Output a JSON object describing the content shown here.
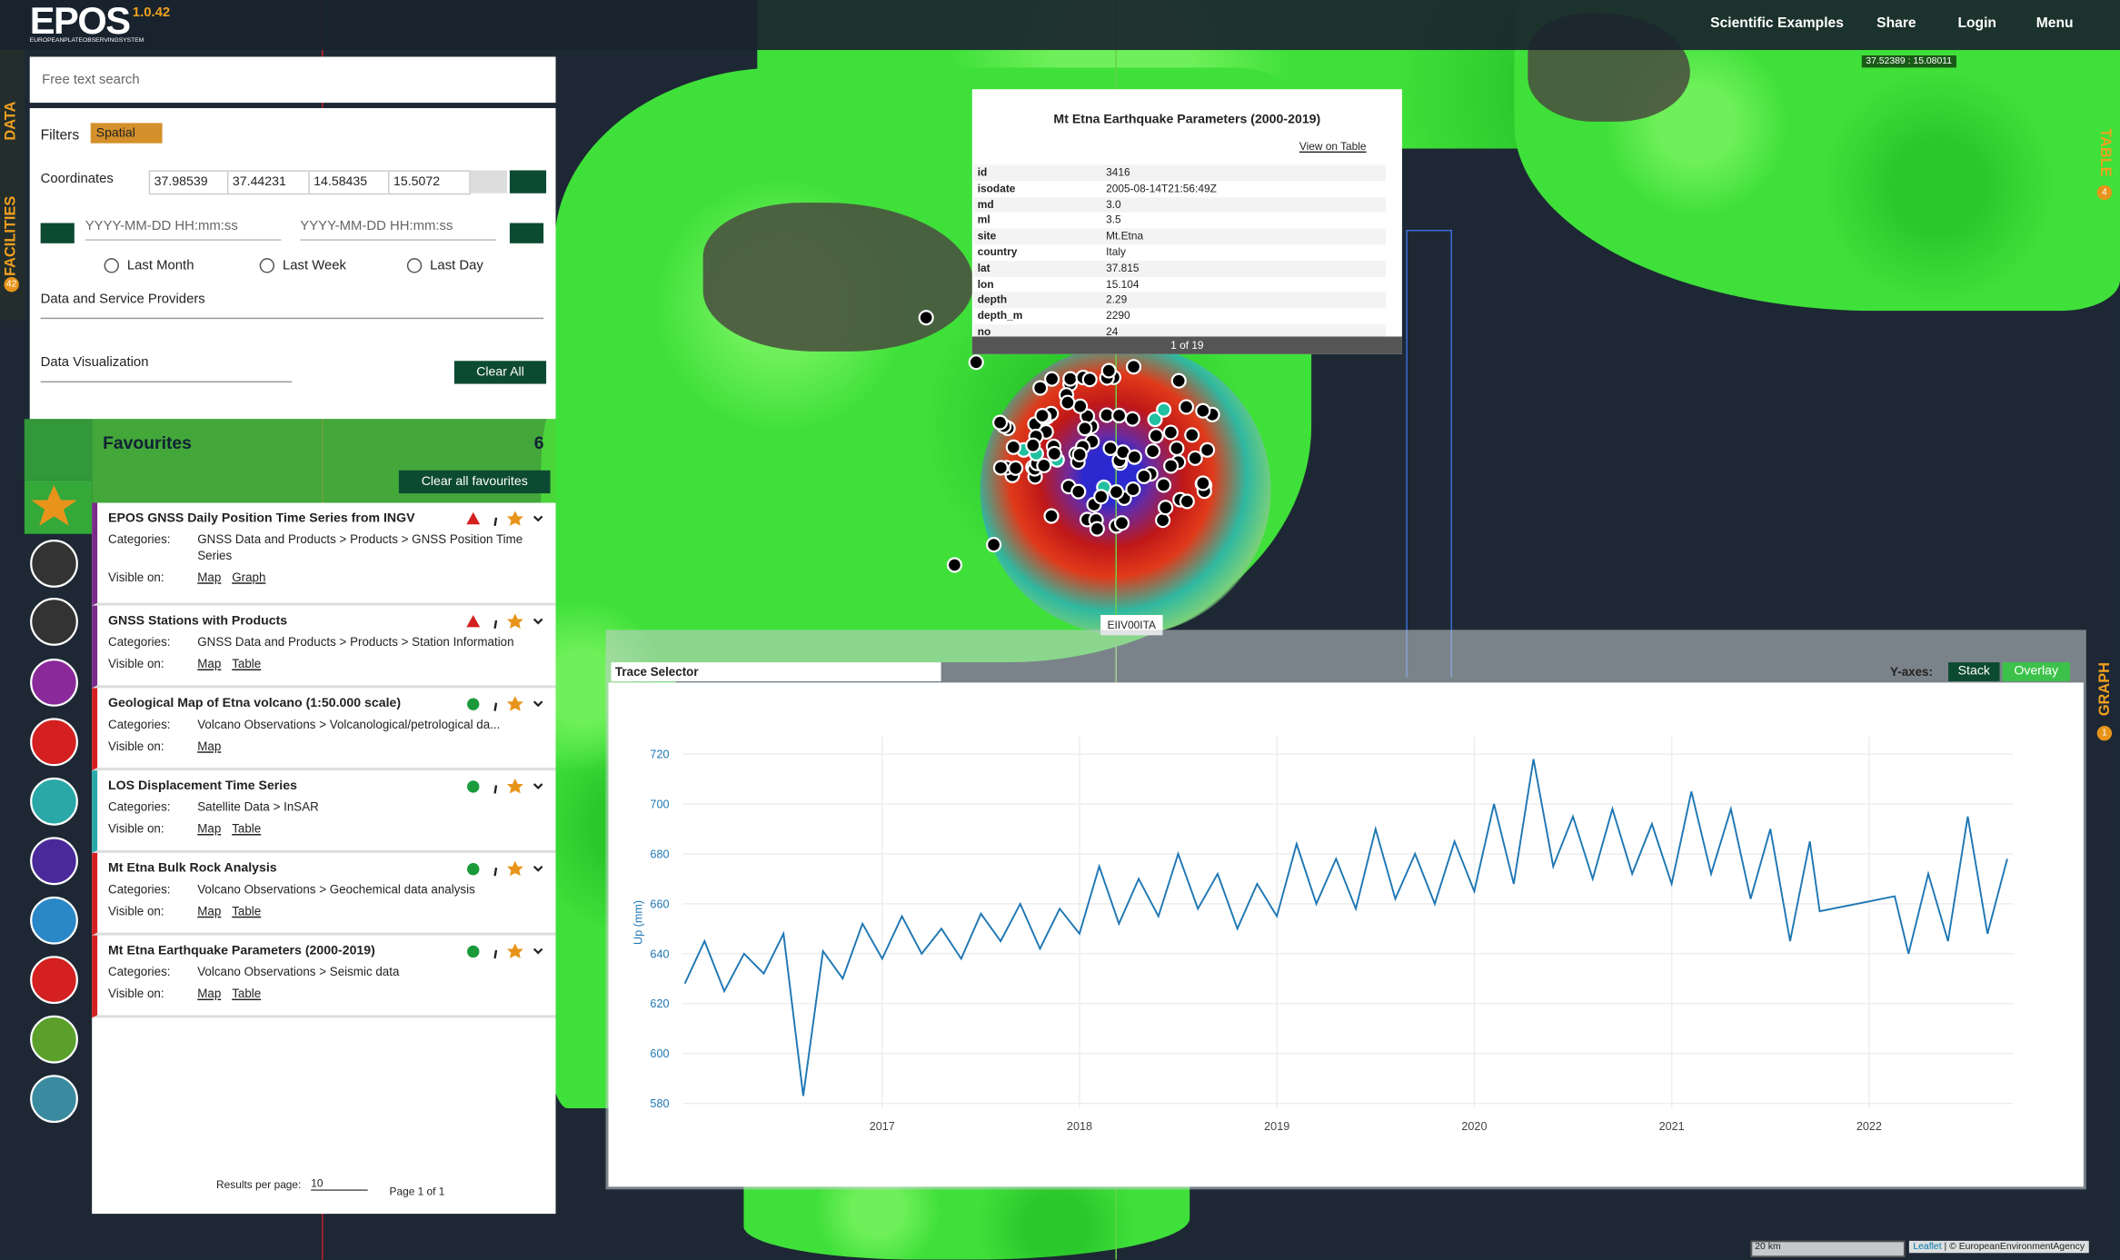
{
  "header": {
    "brand": "EPOS",
    "brand_sub": "EUROPEANPLATEOBSERVINGSYSTEM",
    "version": "1.0.42",
    "nav": [
      "Scientific Examples",
      "Share",
      "Login",
      "Menu"
    ],
    "coords": "37.52389 : 15.08011"
  },
  "side_tabs": {
    "data": "DATA",
    "facilities": "FACILITIES",
    "facilities_count": "42",
    "table": "TABLE",
    "table_count": "4",
    "graph": "GRAPH",
    "graph_count": "1"
  },
  "search": {
    "placeholder": "Free text search"
  },
  "filters": {
    "label": "Filters",
    "chip": "Spatial",
    "coord_label": "Coordinates",
    "coords": [
      "37.98539",
      "37.44231",
      "14.58435",
      "15.5072"
    ],
    "date_placeholders": [
      "YYYY-MM-DD HH:mm:ss",
      "YYYY-MM-DD HH:mm:ss"
    ],
    "ranges": [
      "Last Month",
      "Last Week",
      "Last Day"
    ],
    "providers": "Data and Service Providers",
    "visualization": "Data Visualization",
    "clear": "Clear All"
  },
  "favourites": {
    "title": "Favourites",
    "count": "6",
    "clear": "Clear all favourites",
    "categories_label": "Categories:",
    "visible_label": "Visible on:",
    "items": [
      {
        "title": "EPOS GNSS Daily Position Time Series from INGV",
        "categories": "GNSS Data and Products > Products > GNSS Position Time Series",
        "links": [
          "Map",
          "Graph"
        ]
      },
      {
        "title": "GNSS Stations with Products",
        "categories": "GNSS Data and Products > Products > Station Information",
        "links": [
          "Map",
          "Table"
        ]
      },
      {
        "title": "Geological Map of Etna volcano (1:50.000 scale)",
        "categories": "Volcano Observations > Volcanological/petrological da...",
        "links": [
          "Map"
        ]
      },
      {
        "title": "LOS Displacement Time Series",
        "categories": "Satellite Data > InSAR",
        "links": [
          "Map",
          "Table"
        ]
      },
      {
        "title": "Mt Etna Bulk Rock Analysis",
        "categories": "Volcano Observations > Geochemical data analysis",
        "links": [
          "Map",
          "Table"
        ]
      },
      {
        "title": "Mt Etna Earthquake Parameters (2000-2019)",
        "categories": "Volcano Observations > Seismic data",
        "links": [
          "Map",
          "Table"
        ]
      }
    ],
    "results_label": "Results per page:",
    "per_page": "10",
    "page": "Page 1 of 1"
  },
  "popup": {
    "title": "Mt Etna Earthquake Parameters (2000-2019)",
    "link": "View on Table",
    "rows": [
      [
        "id",
        "3416"
      ],
      [
        "isodate",
        "2005-08-14T21:56:49Z"
      ],
      [
        "md",
        "3.0"
      ],
      [
        "ml",
        "3.5"
      ],
      [
        "site",
        "Mt.Etna"
      ],
      [
        "country",
        "Italy"
      ],
      [
        "lat",
        "37.815"
      ],
      [
        "lon",
        "15.104"
      ],
      [
        "depth",
        "2.29"
      ],
      [
        "depth_m",
        "2290"
      ],
      [
        "no",
        "24"
      ]
    ],
    "pager": "1 of 19"
  },
  "map": {
    "station_label": "EIIV00ITA",
    "scale": "20 km",
    "attribution": [
      "Leaflet",
      "© EuropeanEnvironmentAgency"
    ]
  },
  "graph": {
    "trace_selector": "Trace Selector",
    "yaxes_label": "Y-axes:",
    "modes": [
      "Stack",
      "Overlay"
    ]
  },
  "chart_data": {
    "type": "line",
    "y_label": "Up (mm)",
    "color": "#1f77b4",
    "grid": true,
    "x": [
      2016.0,
      2016.1,
      2016.2,
      2016.3,
      2016.4,
      2016.5,
      2016.6,
      2016.7,
      2016.8,
      2016.9,
      2017.0,
      2017.1,
      2017.2,
      2017.3,
      2017.4,
      2017.5,
      2017.6,
      2017.7,
      2017.8,
      2017.9,
      2018.0,
      2018.1,
      2018.2,
      2018.3,
      2018.4,
      2018.5,
      2018.6,
      2018.7,
      2018.8,
      2018.9,
      2019.0,
      2019.1,
      2019.2,
      2019.3,
      2019.4,
      2019.5,
      2019.6,
      2019.7,
      2019.8,
      2019.9,
      2020.0,
      2020.1,
      2020.2,
      2020.3,
      2020.4,
      2020.5,
      2020.6,
      2020.7,
      2020.8,
      2020.9,
      2021.0,
      2021.1,
      2021.2,
      2021.3,
      2021.4,
      2021.5,
      2021.6,
      2021.7,
      2021.75,
      2022.13,
      2022.2,
      2022.3,
      2022.4,
      2022.5,
      2022.6,
      2022.7
    ],
    "values": [
      628,
      645,
      625,
      640,
      632,
      648,
      583,
      641,
      630,
      652,
      638,
      655,
      640,
      650,
      638,
      656,
      645,
      660,
      642,
      658,
      648,
      675,
      652,
      670,
      655,
      680,
      658,
      672,
      650,
      668,
      655,
      684,
      660,
      678,
      658,
      690,
      662,
      680,
      660,
      685,
      665,
      700,
      668,
      718,
      675,
      695,
      670,
      698,
      672,
      692,
      668,
      705,
      672,
      698,
      662,
      690,
      645,
      685,
      657,
      663,
      640,
      672,
      645,
      695,
      648,
      678
    ],
    "xlim": [
      2015.99,
      2022.73
    ],
    "xticks": [
      2017,
      2018,
      2019,
      2020,
      2021,
      2022
    ],
    "ylim": [
      578,
      727
    ],
    "yticks": [
      580,
      600,
      620,
      640,
      660,
      680,
      700,
      720
    ]
  }
}
